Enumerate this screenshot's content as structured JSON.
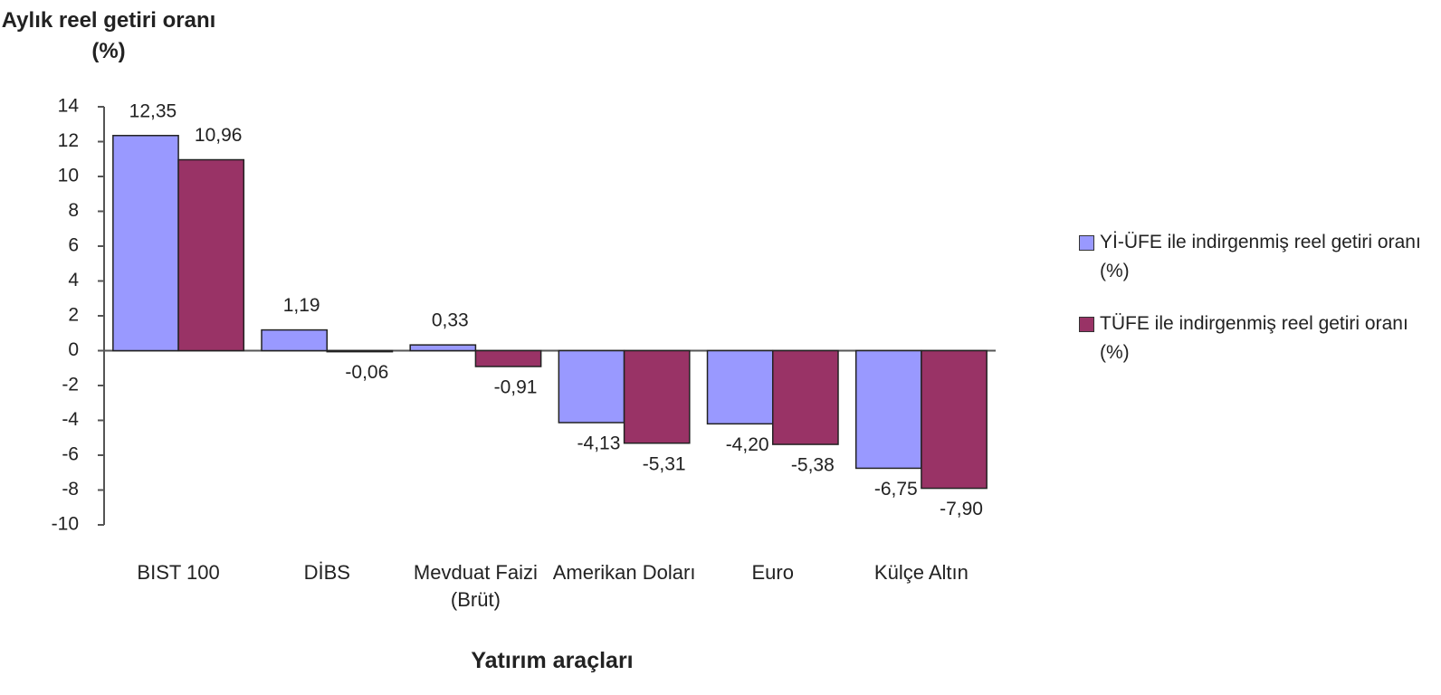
{
  "chart_data": {
    "type": "bar",
    "y_axis_label": "Aylık reel getiri oranı (%)",
    "x_axis_label": "Yatırım araçları",
    "categories": [
      "BIST 100",
      "DİBS",
      "Mevduat Faizi (Brüt)",
      "Amerikan Doları",
      "Euro",
      "Külçe Altın"
    ],
    "series": [
      {
        "name": "Yİ-ÜFE ile indirgenmiş reel getiri oranı (%)",
        "color": "#9999ff",
        "values": [
          12.35,
          1.19,
          0.33,
          -4.13,
          -4.2,
          -6.75
        ],
        "value_labels": [
          "12,35",
          "1,19",
          "0,33",
          "-4,13",
          "-4,20",
          "-6,75"
        ]
      },
      {
        "name": "TÜFE ile indirgenmiş reel getiri oranı (%)",
        "color": "#993366",
        "values": [
          10.96,
          -0.06,
          -0.91,
          -5.31,
          -5.38,
          -7.9
        ],
        "value_labels": [
          "10,96",
          "-0,06",
          "-0,91",
          "-5,31",
          "-5,38",
          "-7,90"
        ]
      }
    ],
    "ylim": [
      -10,
      14
    ],
    "yticks": [
      14,
      12,
      10,
      8,
      6,
      4,
      2,
      0,
      -2,
      -4,
      -6,
      -8,
      -10
    ],
    "legend": "right"
  }
}
